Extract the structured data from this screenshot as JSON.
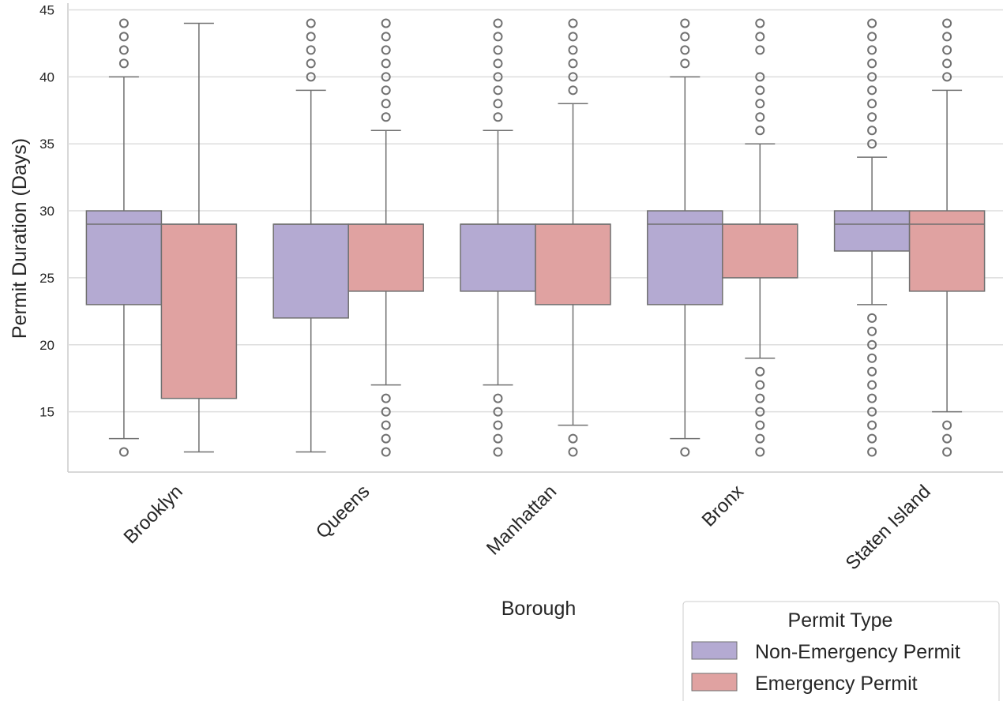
{
  "chart_data": {
    "type": "box",
    "xlabel": "Borough",
    "ylabel": "Permit Duration (Days)",
    "ylim": [
      10.5,
      45.5
    ],
    "yticks": [
      15,
      20,
      25,
      30,
      35,
      40,
      45
    ],
    "grid": true,
    "categories": [
      "Brooklyn",
      "Queens",
      "Manhattan",
      "Bronx",
      "Staten Island"
    ],
    "legend": {
      "title": "Permit Type",
      "placement": "bottom-right, outside axes",
      "entries": [
        "Non-Emergency Permit",
        "Emergency Permit"
      ]
    },
    "series": [
      {
        "name": "Non-Emergency Permit",
        "color": "#b4aad2",
        "boxes": [
          {
            "whislo": 13,
            "q1": 23,
            "med": 29,
            "q3": 30,
            "whishi": 40,
            "fliers": [
              12,
              41,
              42,
              43,
              44
            ]
          },
          {
            "whislo": 12,
            "q1": 22,
            "med": 29,
            "q3": 29,
            "whishi": 39,
            "fliers": [
              40,
              41,
              42,
              43,
              44
            ]
          },
          {
            "whislo": 17,
            "q1": 24,
            "med": 29,
            "q3": 29,
            "whishi": 36,
            "fliers": [
              12,
              13,
              14,
              15,
              16,
              37,
              38,
              39,
              40,
              41,
              42,
              43,
              44
            ]
          },
          {
            "whislo": 13,
            "q1": 23,
            "med": 29,
            "q3": 30,
            "whishi": 40,
            "fliers": [
              12,
              41,
              42,
              43,
              44
            ]
          },
          {
            "whislo": 23,
            "q1": 27,
            "med": 29,
            "q3": 30,
            "whishi": 34,
            "fliers": [
              12,
              13,
              14,
              15,
              16,
              17,
              18,
              19,
              20,
              21,
              22,
              35,
              36,
              37,
              38,
              39,
              40,
              41,
              42,
              43,
              44
            ]
          }
        ]
      },
      {
        "name": "Emergency Permit",
        "color": "#e0a2a1",
        "boxes": [
          {
            "whislo": 12,
            "q1": 16,
            "med": 29,
            "q3": 29,
            "whishi": 44,
            "fliers": []
          },
          {
            "whislo": 17,
            "q1": 24,
            "med": 29,
            "q3": 29,
            "whishi": 36,
            "fliers": [
              12,
              13,
              14,
              15,
              16,
              37,
              38,
              39,
              40,
              41,
              42,
              43,
              44
            ]
          },
          {
            "whislo": 14,
            "q1": 23,
            "med": 29,
            "q3": 29,
            "whishi": 38,
            "fliers": [
              12,
              13,
              39,
              40,
              41,
              42,
              43,
              44
            ]
          },
          {
            "whislo": 19,
            "q1": 25,
            "med": 29,
            "q3": 29,
            "whishi": 35,
            "fliers": [
              12,
              13,
              14,
              15,
              16,
              17,
              18,
              36,
              37,
              38,
              39,
              40,
              42,
              43,
              44
            ]
          },
          {
            "whislo": 15,
            "q1": 24,
            "med": 29,
            "q3": 30,
            "whishi": 39,
            "fliers": [
              12,
              13,
              14,
              40,
              41,
              42,
              43,
              44
            ]
          }
        ]
      }
    ]
  }
}
